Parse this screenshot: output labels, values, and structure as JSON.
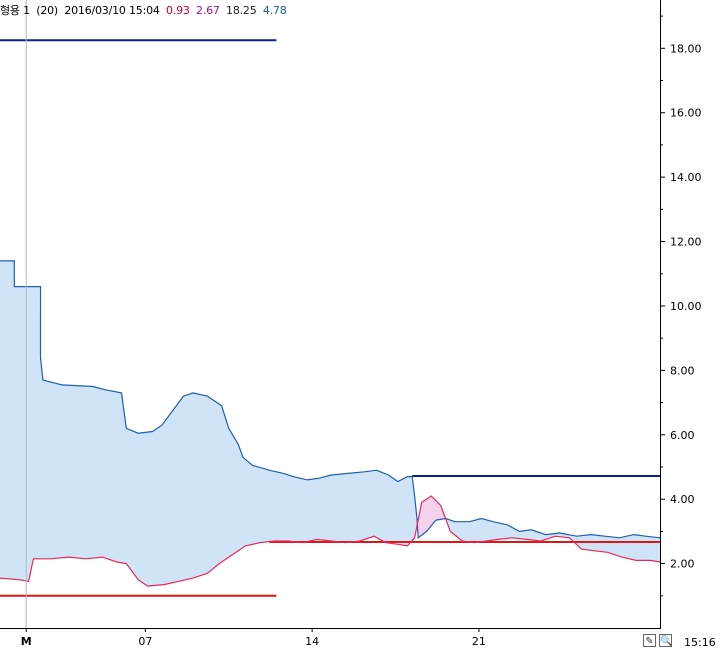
{
  "header": {
    "label": "형용 1",
    "period": "(20)",
    "datetime": "2016/03/10 15:04",
    "values": [
      {
        "text": "0.93",
        "color": "#d0002a"
      },
      {
        "text": "2.67",
        "color": "#9a1a9a"
      },
      {
        "text": "18.25",
        "color": "#222222"
      },
      {
        "text": "4.78",
        "color": "#1a5aa8"
      }
    ]
  },
  "footer": {
    "time": "15:16",
    "tools": [
      {
        "icon": "edit-icon",
        "glyph": "✎"
      },
      {
        "icon": "zoom-icon",
        "glyph": "🔍"
      }
    ]
  },
  "chart_data": {
    "type": "area",
    "x_ticks": [
      {
        "label": "M",
        "x": 0
      },
      {
        "label": "07",
        "x": 5
      },
      {
        "label": "14",
        "x": 12
      },
      {
        "label": "21",
        "x": 19
      }
    ],
    "xlim": [
      -1.1,
      26.6
    ],
    "ylim": [
      0.0,
      19.5
    ],
    "y_ticks": [
      "2.00",
      "4.00",
      "6.00",
      "8.00",
      "10.00",
      "12.00",
      "14.00",
      "16.00",
      "18.00"
    ],
    "y_tick_values": [
      2,
      4,
      6,
      8,
      10,
      12,
      14,
      16,
      18
    ],
    "grid": false,
    "fill_color": "#cfe5f7",
    "pink_fill_color": "#f4d2ee",
    "hlines": [
      {
        "y": 18.25,
        "x_from": -1.1,
        "x_to": 10.5,
        "color": "#0b1f8f"
      },
      {
        "y": 1.0,
        "x_from": -1.1,
        "x_to": 10.5,
        "color": "#e01515"
      },
      {
        "y": 4.72,
        "x_from": 16.2,
        "x_to": 26.6,
        "color": "#0b1f8f"
      },
      {
        "y": 2.67,
        "x_from": 10.2,
        "x_to": 26.6,
        "color": "#e01515"
      }
    ],
    "series": [
      {
        "color": "#1e5fb0",
        "points": [
          [
            -1.1,
            11.4
          ],
          [
            -0.5,
            11.4
          ],
          [
            -0.5,
            10.6
          ],
          [
            0.0,
            10.6
          ],
          [
            0.6,
            10.6
          ],
          [
            0.6,
            8.4
          ],
          [
            0.7,
            7.7
          ],
          [
            1.5,
            7.55
          ],
          [
            2.8,
            7.5
          ],
          [
            3.3,
            7.4
          ],
          [
            4.0,
            7.3
          ],
          [
            4.2,
            6.2
          ],
          [
            4.7,
            6.05
          ],
          [
            5.3,
            6.1
          ],
          [
            5.7,
            6.3
          ],
          [
            6.2,
            6.8
          ],
          [
            6.6,
            7.2
          ],
          [
            7.0,
            7.3
          ],
          [
            7.6,
            7.2
          ],
          [
            8.2,
            6.9
          ],
          [
            8.5,
            6.2
          ],
          [
            8.9,
            5.7
          ],
          [
            9.1,
            5.3
          ],
          [
            9.5,
            5.05
          ],
          [
            10.2,
            4.9
          ],
          [
            10.8,
            4.8
          ],
          [
            11.2,
            4.7
          ],
          [
            11.8,
            4.6
          ],
          [
            12.3,
            4.65
          ],
          [
            12.8,
            4.75
          ],
          [
            13.5,
            4.8
          ],
          [
            14.2,
            4.85
          ],
          [
            14.7,
            4.9
          ],
          [
            15.2,
            4.75
          ],
          [
            15.6,
            4.55
          ],
          [
            16.0,
            4.7
          ],
          [
            16.2,
            4.7
          ],
          [
            16.3,
            4.1
          ],
          [
            16.4,
            3.4
          ],
          [
            16.45,
            2.8
          ],
          [
            16.8,
            3.0
          ],
          [
            17.2,
            3.35
          ],
          [
            17.6,
            3.4
          ],
          [
            18.0,
            3.3
          ],
          [
            18.6,
            3.3
          ],
          [
            19.1,
            3.4
          ],
          [
            19.6,
            3.3
          ],
          [
            20.2,
            3.2
          ],
          [
            20.7,
            3.0
          ],
          [
            21.2,
            3.05
          ],
          [
            21.8,
            2.9
          ],
          [
            22.4,
            2.95
          ],
          [
            23.1,
            2.85
          ],
          [
            23.7,
            2.9
          ],
          [
            24.3,
            2.85
          ],
          [
            24.9,
            2.8
          ],
          [
            25.5,
            2.9
          ],
          [
            26.0,
            2.85
          ],
          [
            26.6,
            2.8
          ]
        ]
      },
      {
        "color": "#e8285a",
        "points": [
          [
            -1.1,
            1.55
          ],
          [
            -0.3,
            1.5
          ],
          [
            0.1,
            1.45
          ],
          [
            0.3,
            2.15
          ],
          [
            1.0,
            2.15
          ],
          [
            1.8,
            2.2
          ],
          [
            2.5,
            2.15
          ],
          [
            3.2,
            2.2
          ],
          [
            3.8,
            2.05
          ],
          [
            4.2,
            2.0
          ],
          [
            4.7,
            1.5
          ],
          [
            5.1,
            1.3
          ],
          [
            5.8,
            1.35
          ],
          [
            6.4,
            1.45
          ],
          [
            7.0,
            1.55
          ],
          [
            7.6,
            1.7
          ],
          [
            8.1,
            2.0
          ],
          [
            8.7,
            2.3
          ],
          [
            9.2,
            2.55
          ],
          [
            9.8,
            2.65
          ],
          [
            10.4,
            2.7
          ],
          [
            11.0,
            2.7
          ],
          [
            11.6,
            2.65
          ],
          [
            12.2,
            2.75
          ],
          [
            12.8,
            2.7
          ],
          [
            13.4,
            2.65
          ],
          [
            14.0,
            2.7
          ],
          [
            14.6,
            2.85
          ],
          [
            15.1,
            2.65
          ],
          [
            15.6,
            2.6
          ],
          [
            16.0,
            2.55
          ],
          [
            16.3,
            2.8
          ],
          [
            16.6,
            3.9
          ],
          [
            17.0,
            4.1
          ],
          [
            17.4,
            3.8
          ],
          [
            17.8,
            3.0
          ],
          [
            18.3,
            2.7
          ],
          [
            18.8,
            2.65
          ],
          [
            19.3,
            2.7
          ],
          [
            19.8,
            2.75
          ],
          [
            20.4,
            2.8
          ],
          [
            21.0,
            2.75
          ],
          [
            21.6,
            2.7
          ],
          [
            22.2,
            2.85
          ],
          [
            22.8,
            2.8
          ],
          [
            23.3,
            2.45
          ],
          [
            23.8,
            2.4
          ],
          [
            24.4,
            2.35
          ],
          [
            25.0,
            2.2
          ],
          [
            25.6,
            2.1
          ],
          [
            26.2,
            2.1
          ],
          [
            26.6,
            2.05
          ]
        ]
      }
    ]
  }
}
